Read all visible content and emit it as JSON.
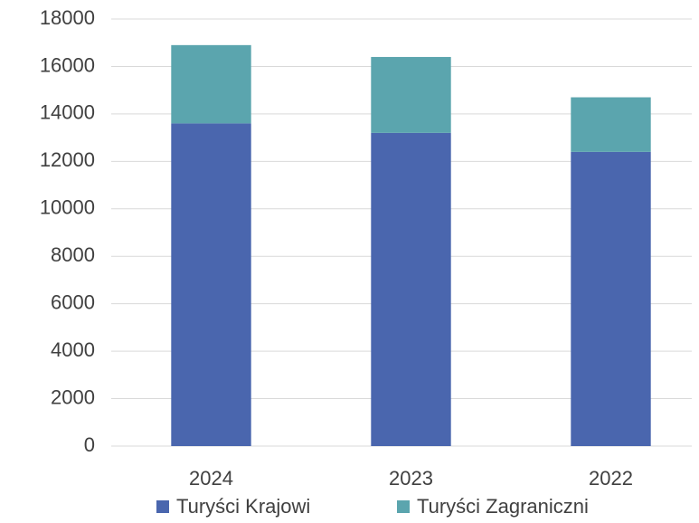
{
  "chart_data": {
    "type": "stacked_bar",
    "categories": [
      "2024",
      "2023",
      "2022"
    ],
    "series": [
      {
        "name": "Turyści Krajowi",
        "color": "#4a66ae",
        "values": [
          13600,
          13200,
          12400
        ]
      },
      {
        "name": "Turyści Zagraniczni",
        "color": "#5ba5ae",
        "values": [
          3300,
          3200,
          2300
        ]
      }
    ],
    "ylim": [
      0,
      18000
    ],
    "yticks": [
      0,
      2000,
      4000,
      6000,
      8000,
      10000,
      12000,
      14000,
      16000,
      18000
    ],
    "grid": true,
    "legend": "bottom"
  }
}
